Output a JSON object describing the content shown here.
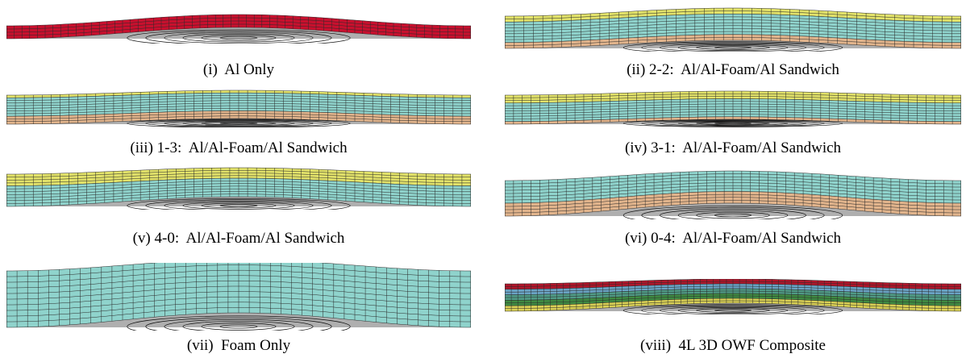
{
  "colors": {
    "al_red": "#c8102e",
    "foam_cyan": "#8fd3cc",
    "al_yellow": "#e2e26a",
    "al_tan": "#e1b48c",
    "mesh_line": "#2a2a2a",
    "deformed_shadow": "#6e6e6e",
    "composite_red": "#b0162b",
    "composite_blue": "#6aa3c4",
    "composite_teal": "#4f9a85",
    "composite_green": "#3f8a42",
    "composite_yellow": "#d8cf55"
  },
  "panels": [
    {
      "caption": "(i)  Al Only"
    },
    {
      "caption": "(ii) 2-2:  Al/Al-Foam/Al Sandwich"
    },
    {
      "caption": "(iii) 1-3:  Al/Al-Foam/Al Sandwich"
    },
    {
      "caption": "(iv) 3-1:  Al/Al-Foam/Al Sandwich"
    },
    {
      "caption": "(v) 4-0:  Al/Al-Foam/Al Sandwich"
    },
    {
      "caption": "(vi) 0-4:  Al/Al-Foam/Al Sandwich"
    },
    {
      "caption": "(vii)  Foam Only"
    },
    {
      "caption": "(viii)  4L 3D OWF Composite"
    }
  ]
}
